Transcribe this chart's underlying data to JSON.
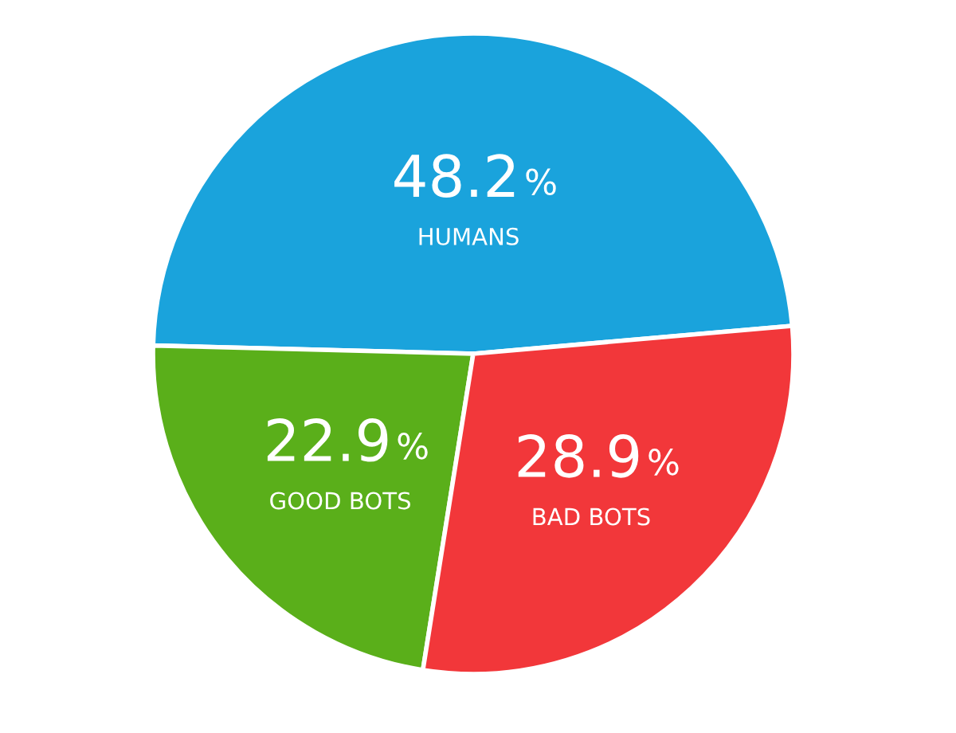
{
  "chart_data": {
    "type": "pie",
    "categories": [
      "HUMANS",
      "GOOD BOTS",
      "BAD BOTS"
    ],
    "values": [
      48.2,
      22.9,
      28.9
    ],
    "colors": [
      "#1aa3dc",
      "#5aaf1a",
      "#f2373a"
    ],
    "value_labels": [
      "48.2%",
      "22.9%",
      "28.9%"
    ]
  }
}
